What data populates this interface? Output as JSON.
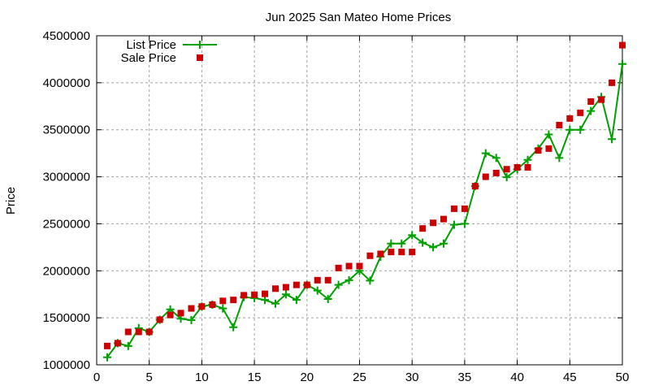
{
  "chart_data": {
    "type": "line",
    "title": "Jun 2025 San Mateo Home Prices",
    "xlabel": "",
    "ylabel": "Price",
    "xlim": [
      0,
      50
    ],
    "ylim": [
      1000000,
      4500000
    ],
    "xticks": [
      0,
      5,
      10,
      15,
      20,
      25,
      30,
      35,
      40,
      45,
      50
    ],
    "yticks": [
      1000000,
      1500000,
      2000000,
      2500000,
      3000000,
      3500000,
      4000000,
      4500000
    ],
    "grid": true,
    "legend_position": "top-left",
    "x": [
      1,
      2,
      3,
      4,
      5,
      6,
      7,
      8,
      9,
      10,
      11,
      12,
      13,
      14,
      15,
      16,
      17,
      18,
      19,
      20,
      21,
      22,
      23,
      24,
      25,
      26,
      27,
      28,
      29,
      30,
      31,
      32,
      33,
      34,
      35,
      36,
      37,
      38,
      39,
      40,
      41,
      42,
      43,
      44,
      45,
      46,
      47,
      48,
      49,
      50
    ],
    "series": [
      {
        "name": "List Price",
        "style": "linespoints",
        "color": "#00a000",
        "values": [
          1080000,
          1230000,
          1200000,
          1390000,
          1350000,
          1480000,
          1590000,
          1490000,
          1475000,
          1620000,
          1640000,
          1600000,
          1400000,
          1720000,
          1710000,
          1690000,
          1650000,
          1750000,
          1690000,
          1850000,
          1790000,
          1700000,
          1850000,
          1900000,
          2000000,
          1895000,
          2150000,
          2290000,
          2290000,
          2380000,
          2300000,
          2250000,
          2290000,
          2490000,
          2500000,
          2900000,
          3250000,
          3200000,
          2995000,
          3080000,
          3180000,
          3300000,
          3450000,
          3200000,
          3500000,
          3500000,
          3700000,
          3850000,
          3400000,
          4200000
        ]
      },
      {
        "name": "Sale Price",
        "style": "points",
        "color": "#cc0000",
        "values": [
          1200000,
          1230000,
          1350000,
          1350000,
          1350000,
          1480000,
          1530000,
          1550000,
          1600000,
          1620000,
          1640000,
          1680000,
          1690000,
          1740000,
          1745000,
          1755000,
          1810000,
          1825000,
          1850000,
          1850000,
          1900000,
          1900000,
          2030000,
          2050000,
          2050000,
          2160000,
          2180000,
          2200000,
          2200000,
          2200000,
          2450000,
          2510000,
          2550000,
          2660000,
          2660000,
          2900000,
          3000000,
          3040000,
          3080000,
          3100000,
          3100000,
          3280000,
          3300000,
          3550000,
          3620000,
          3680000,
          3800000,
          3820000,
          4000000,
          4400000
        ]
      }
    ]
  }
}
